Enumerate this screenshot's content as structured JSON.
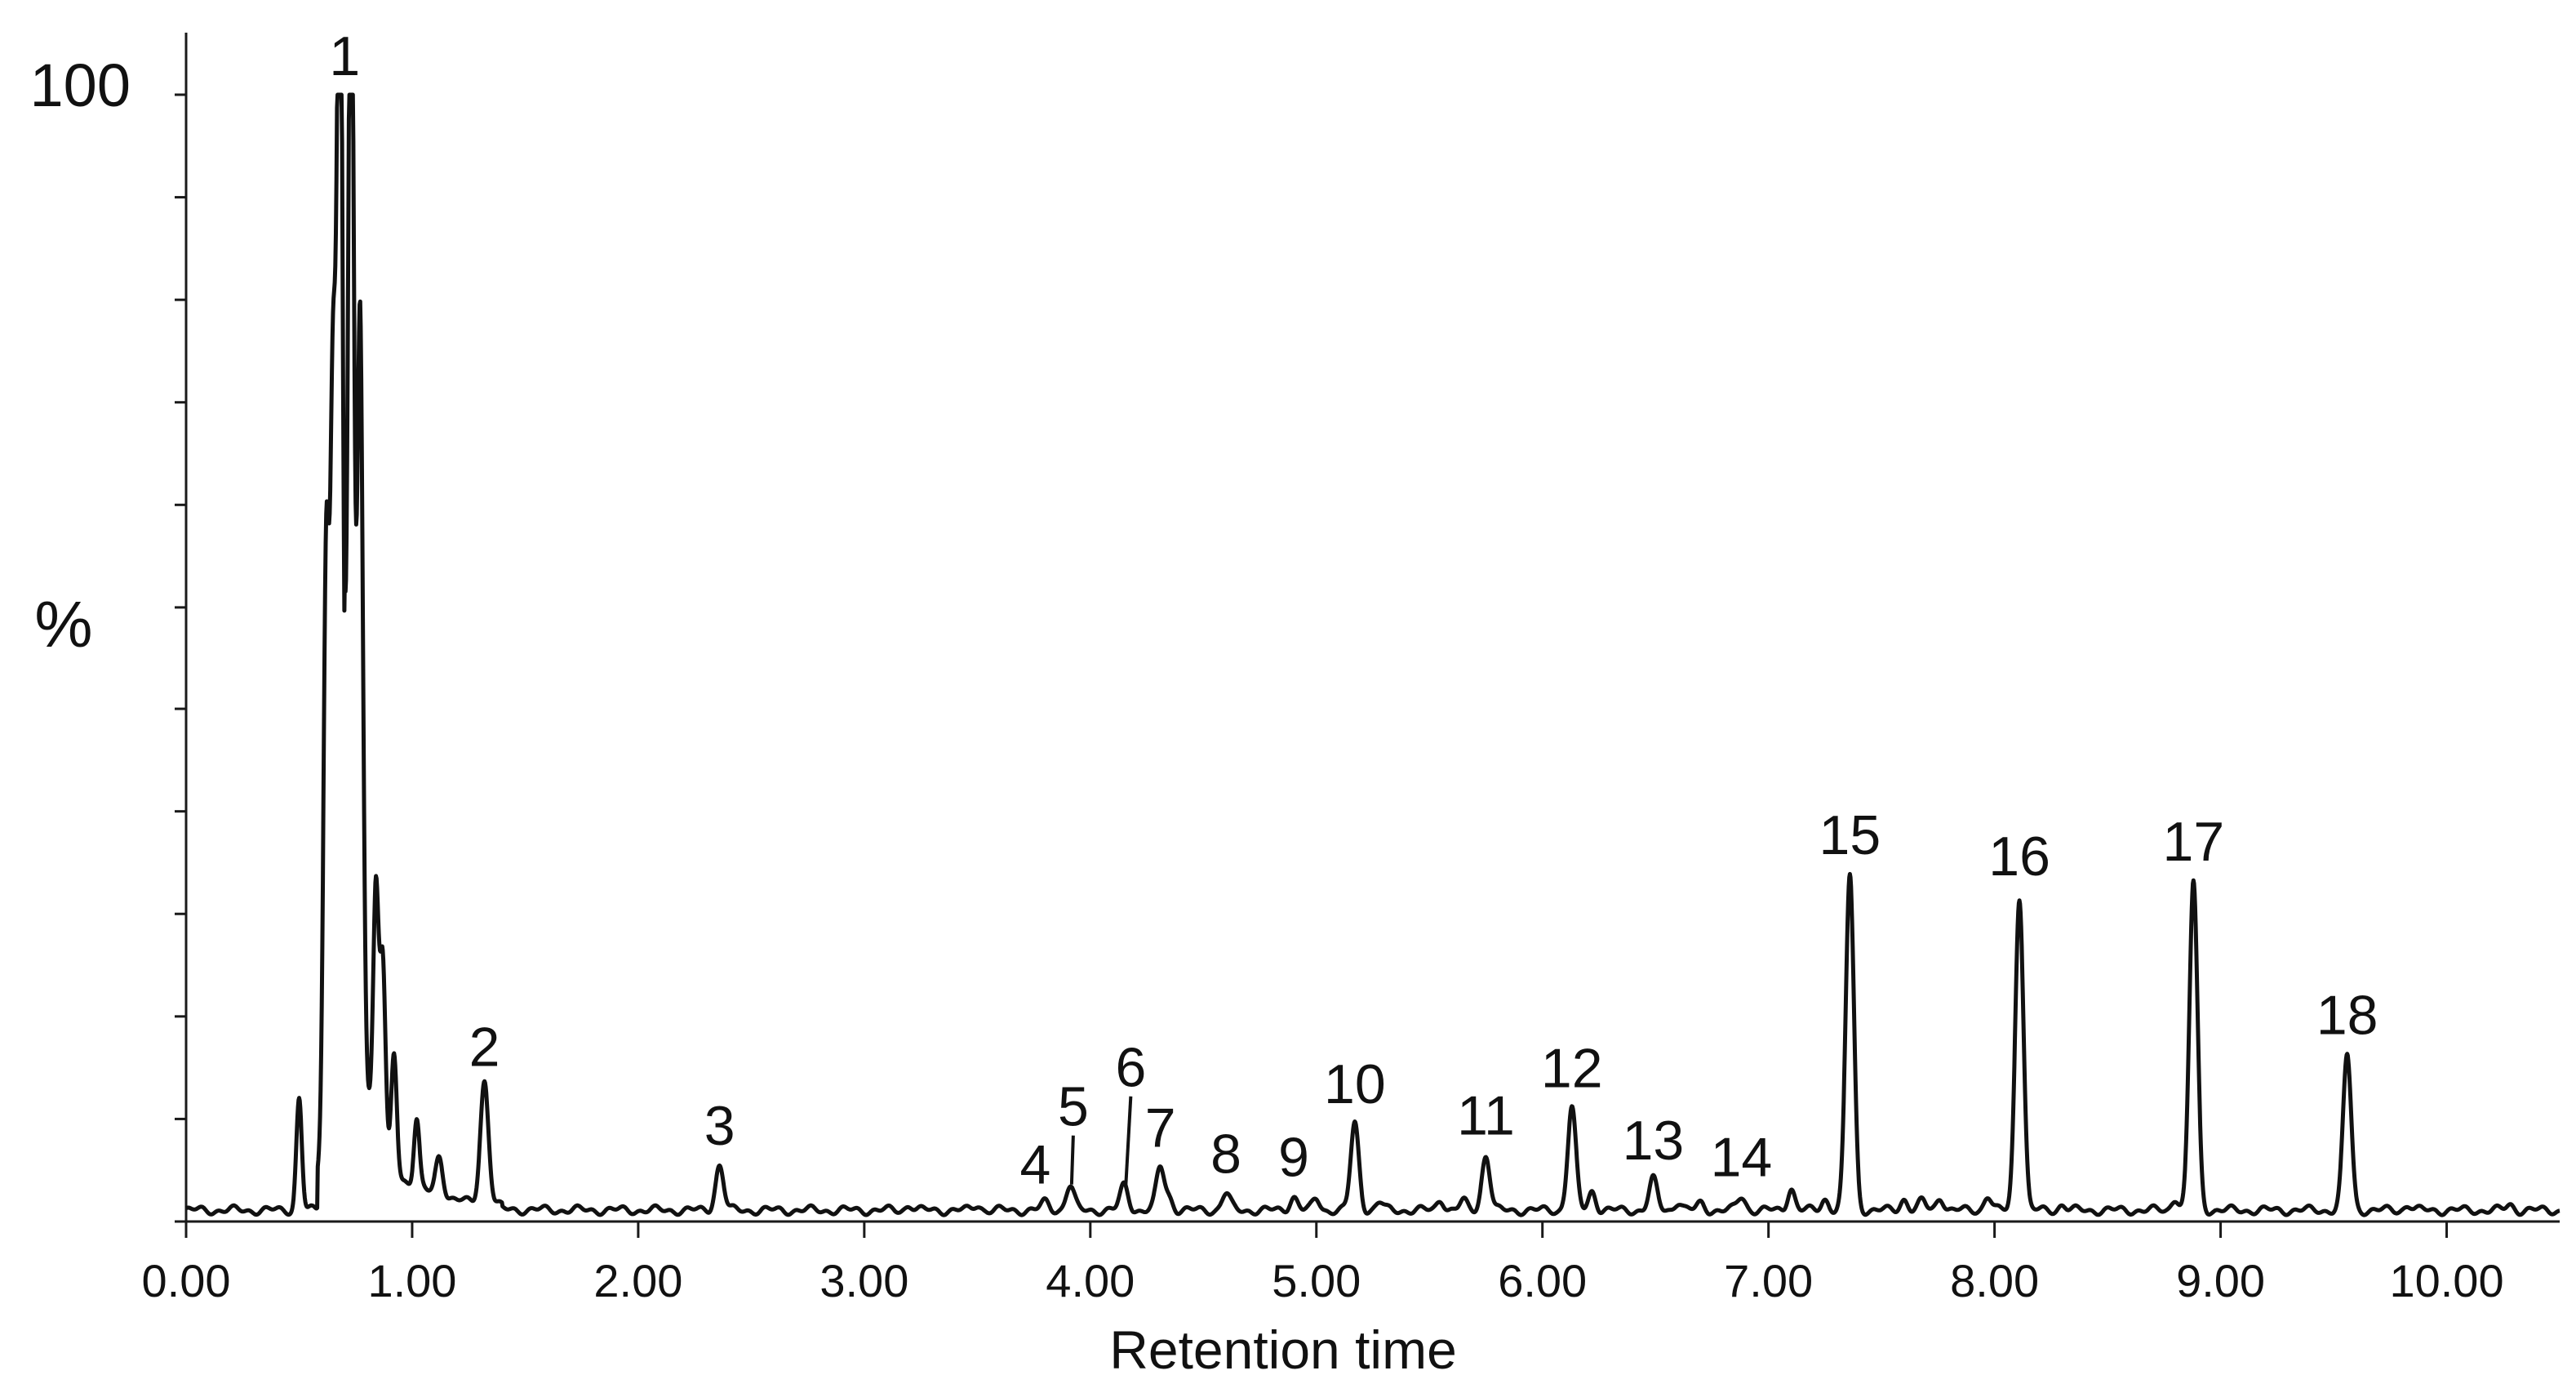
{
  "chart_data": {
    "type": "line",
    "title": "",
    "xlabel": "Retention time",
    "ylabel": "%",
    "y_top_label": "100",
    "xlim": [
      0,
      10.5
    ],
    "ylim": [
      0,
      100
    ],
    "x_ticks": [
      0,
      1,
      2,
      3,
      4,
      5,
      6,
      7,
      8,
      9,
      10
    ],
    "x_tick_labels": [
      "0.00",
      "1.00",
      "2.00",
      "3.00",
      "4.00",
      "5.00",
      "6.00",
      "7.00",
      "8.00",
      "9.00",
      "10.00"
    ],
    "y_minor_ticks": [
      0,
      9.1,
      18.2,
      27.3,
      36.4,
      45.5,
      54.5,
      63.6,
      72.7,
      81.8,
      90.9,
      100
    ],
    "grid": false,
    "baseline": 1.0,
    "series": [
      {
        "peaks": [
          {
            "label": "1",
            "x": 0.68,
            "height": 100.0
          },
          {
            "label": "2",
            "x": 1.32,
            "height": 11.5
          },
          {
            "label": "3",
            "x": 2.36,
            "height": 4.5
          },
          {
            "label": "4",
            "x": 3.8,
            "height": 1.2
          },
          {
            "label": "5",
            "x": 3.91,
            "height": 2.7
          },
          {
            "label": "6",
            "x": 4.15,
            "height": 2.7
          },
          {
            "label": "7",
            "x": 4.31,
            "height": 4.3
          },
          {
            "label": "8",
            "x": 4.6,
            "height": 2.0
          },
          {
            "label": "9",
            "x": 4.9,
            "height": 1.7
          },
          {
            "label": "10",
            "x": 5.17,
            "height": 8.2
          },
          {
            "label": "11",
            "x": 5.75,
            "height": 5.4
          },
          {
            "label": "12",
            "x": 6.13,
            "height": 9.6
          },
          {
            "label": "13",
            "x": 6.49,
            "height": 3.2
          },
          {
            "label": "14",
            "x": 6.88,
            "height": 1.7
          },
          {
            "label": "15",
            "x": 7.36,
            "height": 30.3
          },
          {
            "label": "16",
            "x": 8.11,
            "height": 28.4
          },
          {
            "label": "17",
            "x": 8.88,
            "height": 29.7
          },
          {
            "label": "18",
            "x": 9.56,
            "height": 14.3
          }
        ],
        "minor_peaks": [
          {
            "x": 0.5,
            "height": 10.5
          },
          {
            "x": 0.62,
            "height": 50.0
          },
          {
            "x": 0.65,
            "height": 57.0
          },
          {
            "x": 0.73,
            "height": 93.0
          },
          {
            "x": 0.77,
            "height": 62.0
          },
          {
            "x": 0.84,
            "height": 23.0
          },
          {
            "x": 0.87,
            "height": 18.0
          },
          {
            "x": 0.92,
            "height": 11.0
          },
          {
            "x": 1.02,
            "height": 6.5
          },
          {
            "x": 1.12,
            "height": 4.0
          },
          {
            "x": 3.2,
            "height": 1.0
          },
          {
            "x": 3.5,
            "height": 1.0
          },
          {
            "x": 4.35,
            "height": 1.5
          },
          {
            "x": 5.0,
            "height": 1.5
          },
          {
            "x": 5.28,
            "height": 1.2
          },
          {
            "x": 5.55,
            "height": 1.5
          },
          {
            "x": 5.65,
            "height": 1.3
          },
          {
            "x": 6.22,
            "height": 2.2
          },
          {
            "x": 6.6,
            "height": 1.3
          },
          {
            "x": 6.7,
            "height": 1.1
          },
          {
            "x": 7.1,
            "height": 2.5
          },
          {
            "x": 7.25,
            "height": 1.5
          },
          {
            "x": 7.6,
            "height": 1.5
          },
          {
            "x": 7.68,
            "height": 1.3
          },
          {
            "x": 7.76,
            "height": 1.7
          },
          {
            "x": 7.97,
            "height": 1.8
          },
          {
            "x": 8.3,
            "height": 1.0
          },
          {
            "x": 8.8,
            "height": 1.6
          },
          {
            "x": 9.83,
            "height": 1.0
          },
          {
            "x": 10.28,
            "height": 1.0
          }
        ]
      }
    ]
  }
}
